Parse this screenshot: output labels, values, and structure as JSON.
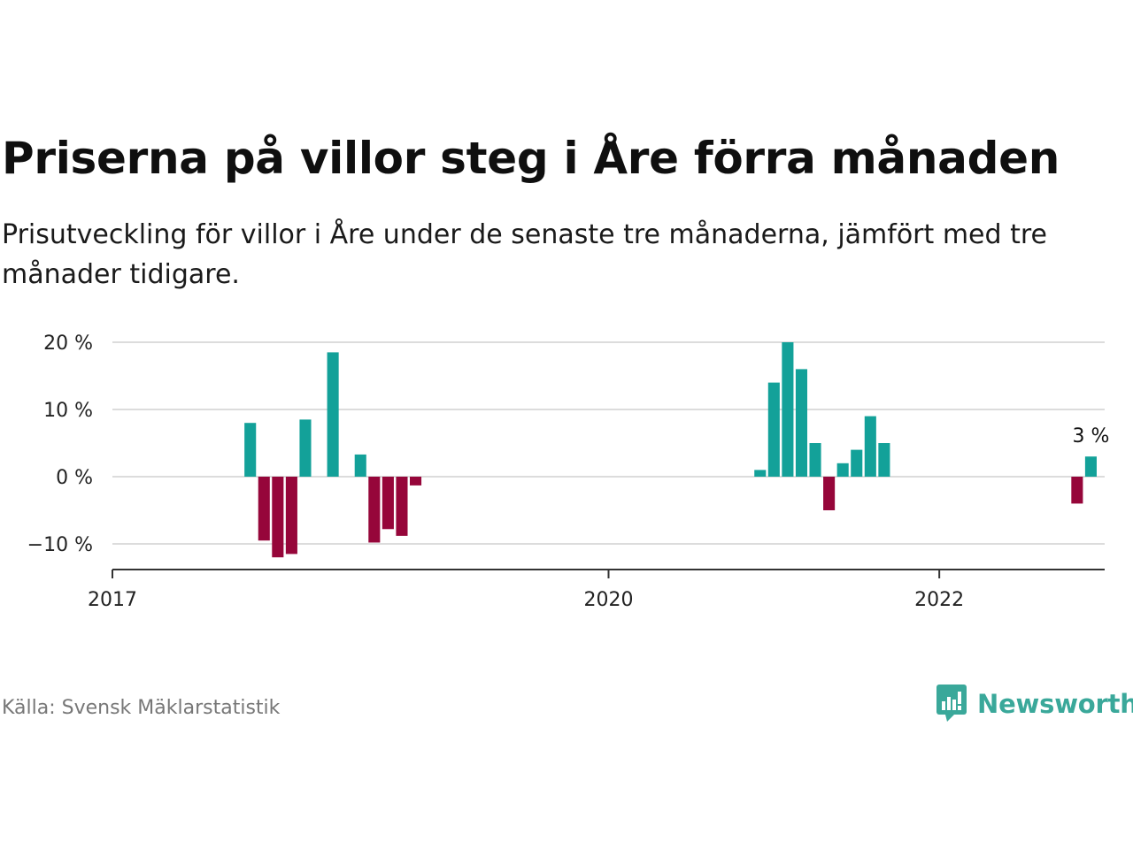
{
  "title": "Priserna på villor steg i Åre förra månaden",
  "subtitle": "Prisutveckling för villor i Åre under de senaste tre månaderna, jämfört med tre månader tidigare.",
  "source": "Källa: Svensk Mäklarstatistik",
  "brand": {
    "name": "Newsworthy",
    "logo_icon": "newsworthy-logo-icon"
  },
  "colors": {
    "positive": "#13a199",
    "negative": "#96063a",
    "grid": "#dcdcdc",
    "axis": "#333333"
  },
  "chart_data": {
    "type": "bar",
    "x_start": "2017-01",
    "x_end": "2023-01",
    "ylim": [
      -14,
      20
    ],
    "yticks": [
      {
        "value": 20,
        "label": "20 %"
      },
      {
        "value": 10,
        "label": "10 %"
      },
      {
        "value": 0,
        "label": "0 %"
      },
      {
        "value": -10,
        "label": "−10 %"
      }
    ],
    "xticks": [
      {
        "date": "2017-01",
        "label": "2017"
      },
      {
        "date": "2020-01",
        "label": "2020"
      },
      {
        "date": "2022-01",
        "label": "2022"
      }
    ],
    "annotation": {
      "date": "2022-12",
      "label": "3 %"
    },
    "bars": [
      {
        "date": "2017-11",
        "value": 8
      },
      {
        "date": "2017-12",
        "value": -9.5
      },
      {
        "date": "2018-01",
        "value": -12
      },
      {
        "date": "2018-02",
        "value": -11.5
      },
      {
        "date": "2018-03",
        "value": 8.5
      },
      {
        "date": "2018-05",
        "value": 18.5
      },
      {
        "date": "2018-07",
        "value": 3.3
      },
      {
        "date": "2018-08",
        "value": -9.8
      },
      {
        "date": "2018-09",
        "value": -7.8
      },
      {
        "date": "2018-10",
        "value": -8.8
      },
      {
        "date": "2018-11",
        "value": -1.3
      },
      {
        "date": "2020-12",
        "value": 1
      },
      {
        "date": "2021-01",
        "value": 14
      },
      {
        "date": "2021-02",
        "value": 20
      },
      {
        "date": "2021-03",
        "value": 16
      },
      {
        "date": "2021-04",
        "value": 5
      },
      {
        "date": "2021-05",
        "value": -5
      },
      {
        "date": "2021-06",
        "value": 2
      },
      {
        "date": "2021-07",
        "value": 4
      },
      {
        "date": "2021-08",
        "value": 9
      },
      {
        "date": "2021-09",
        "value": 5
      },
      {
        "date": "2022-11",
        "value": -4
      },
      {
        "date": "2022-12",
        "value": 3
      }
    ]
  }
}
